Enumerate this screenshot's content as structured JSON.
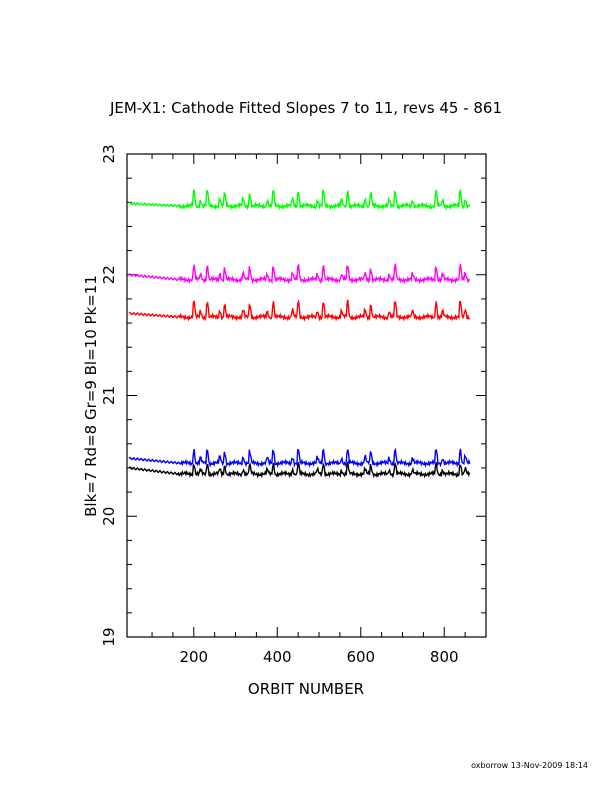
{
  "chart_data": {
    "type": "line",
    "title": "JEM-X1: Cathode Fitted Slopes 7 to 11, revs 45 - 861",
    "xlabel": "ORBIT NUMBER",
    "ylabel": "Blk=7 Rd=8 Gr=9 Bl=10 Pk=11",
    "xlim": [
      40,
      900
    ],
    "ylim": [
      19,
      23
    ],
    "xticks": [
      200,
      400,
      600,
      800
    ],
    "xtick_labels": [
      "200",
      "400",
      "600",
      "800"
    ],
    "yticks": [
      19,
      20,
      21,
      22,
      23
    ],
    "ytick_labels": [
      "19",
      "20",
      "21",
      "22",
      "23"
    ],
    "grid": false,
    "legend": "none (series encoded in y-axis label)",
    "series": [
      {
        "name": "Blk=7",
        "color": "#000000",
        "base": 20.35,
        "spike": 0.12,
        "start": 20.4
      },
      {
        "name": "Rd=8",
        "color": "#ff0000",
        "base": 21.65,
        "spike": 0.18,
        "start": 21.68
      },
      {
        "name": "Gr=9",
        "color": "#00ff00",
        "base": 22.57,
        "spike": 0.18,
        "start": 22.59
      },
      {
        "name": "Bl=10",
        "color": "#0000ff",
        "base": 20.44,
        "spike": 0.16,
        "start": 20.48
      },
      {
        "name": "Pk=11",
        "color": "#ff00ff",
        "base": 21.96,
        "spike": 0.16,
        "start": 22.0
      }
    ],
    "spike_orbits": [
      200,
      215,
      232,
      262,
      273,
      318,
      333,
      375,
      390,
      436,
      450,
      495,
      510,
      553,
      568,
      610,
      623,
      667,
      682,
      723,
      780,
      795,
      838,
      850
    ]
  },
  "footer": "oxborrow 13-Nov-2009 18:14"
}
